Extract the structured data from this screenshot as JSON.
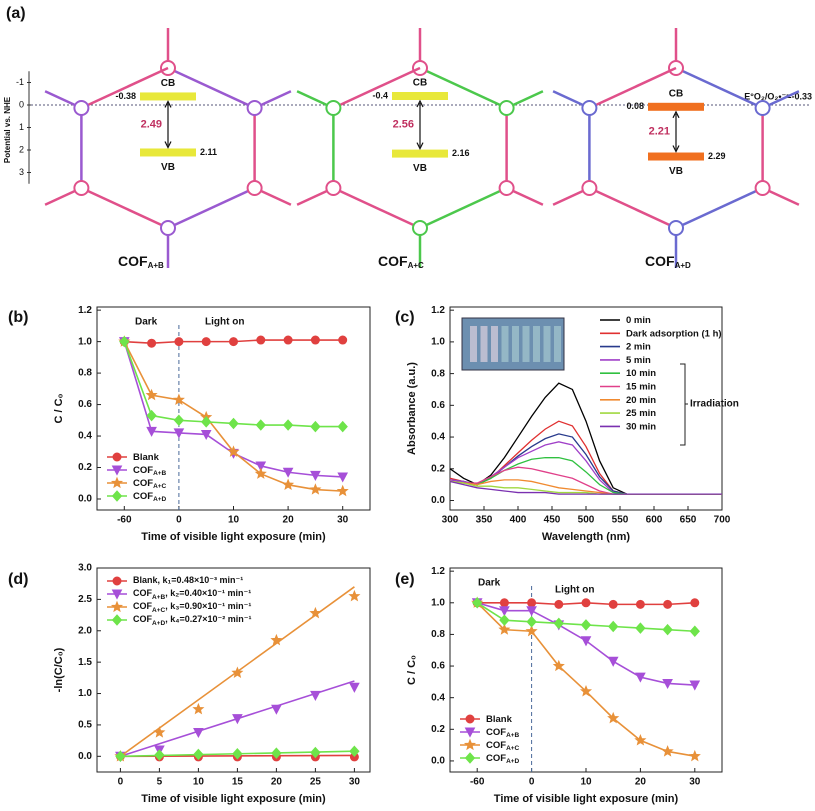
{
  "diagram": {
    "label": "(a)",
    "axis_label": "Potential vs. NHE",
    "axis_ticks": [
      -1,
      0,
      1,
      2,
      3
    ],
    "reference_label": "E°O₂/O₂•⁻=-0.33",
    "cofs": [
      {
        "name": "COF",
        "subscript": "A+B",
        "cb": -0.38,
        "vb": 2.11,
        "gap": 2.49,
        "cb_text": "CB",
        "vb_text": "VB",
        "color": "#e8e83a"
      },
      {
        "name": "COF",
        "subscript": "A+C",
        "cb": -0.4,
        "vb": 2.16,
        "gap": 2.56,
        "cb_text": "CB",
        "vb_text": "VB",
        "color": "#e8e83a"
      },
      {
        "name": "COF",
        "subscript": "A+D",
        "cb": 0.08,
        "vb": 2.29,
        "gap": 2.21,
        "cb_text": "CB",
        "vb_text": "VB",
        "color": "#f07020"
      }
    ]
  },
  "chart_data": [
    {
      "type": "line",
      "label": "(b)",
      "xlabel": "Time of visible light exposure (min)",
      "ylabel": "C / C₀",
      "annotations": [
        "Dark",
        "Light on"
      ],
      "categories": [
        "-60",
        null,
        "0",
        null,
        "10",
        null,
        "20",
        null,
        "30"
      ],
      "ylim": [
        -0.07,
        1.22
      ],
      "yticks": [
        {
          "value": 0,
          "label": "0.0"
        },
        0.2,
        0.4,
        0.6,
        0.8,
        {
          "value": 1,
          "label": "1.0"
        },
        1.2
      ],
      "legend": "lower left",
      "series": [
        {
          "name": "Blank",
          "color": "#e0403f",
          "marker": "circle",
          "values": [
            1.0,
            0.99,
            1.0,
            1.0,
            1.0,
            1.01,
            1.01,
            1.01,
            1.01
          ]
        },
        {
          "name": "COF",
          "subscript": "A+B",
          "color": "#a64fd8",
          "marker": "triangle",
          "values": [
            1.0,
            0.43,
            0.42,
            0.41,
            0.29,
            0.21,
            0.17,
            0.15,
            0.14
          ]
        },
        {
          "name": "COF",
          "subscript": "A+C",
          "color": "#e89139",
          "marker": "star",
          "values": [
            1.0,
            0.66,
            0.63,
            0.52,
            0.3,
            0.16,
            0.09,
            0.06,
            0.05
          ]
        },
        {
          "name": "COF",
          "subscript": "A+D",
          "color": "#6ee44a",
          "marker": "diamond",
          "values": [
            1.0,
            0.53,
            0.5,
            0.49,
            0.48,
            0.47,
            0.47,
            0.46,
            0.46
          ]
        }
      ]
    },
    {
      "type": "line",
      "label": "(c)",
      "xlabel": "Wavelength (nm)",
      "ylabel": "Absorbance (a.u.)",
      "annotations": [
        "Irradiation"
      ],
      "x": [
        300,
        320,
        340,
        360,
        380,
        400,
        420,
        440,
        460,
        480,
        500,
        520,
        540,
        560,
        600,
        650,
        700
      ],
      "xlim": [
        300,
        700
      ],
      "xticks": [
        300,
        350,
        400,
        450,
        500,
        550,
        600,
        650,
        700
      ],
      "ylim": [
        -0.06,
        1.22
      ],
      "yticks": [
        {
          "value": 0,
          "label": "0.0"
        },
        0.2,
        0.4,
        0.6,
        0.8,
        {
          "value": 1,
          "label": "1.0"
        },
        1.2
      ],
      "legend": "upper right",
      "series": [
        {
          "name": "0 min",
          "color": "#000000",
          "values": [
            0.2,
            0.14,
            0.1,
            0.16,
            0.27,
            0.4,
            0.53,
            0.65,
            0.74,
            0.7,
            0.5,
            0.25,
            0.08,
            0.04,
            0.04,
            0.04,
            0.04
          ]
        },
        {
          "name": "Dark adsorption (1 h)",
          "color": "#e03030",
          "values": [
            0.14,
            0.12,
            0.1,
            0.14,
            0.22,
            0.3,
            0.38,
            0.45,
            0.5,
            0.47,
            0.34,
            0.17,
            0.06,
            0.04,
            0.04,
            0.04,
            0.04
          ]
        },
        {
          "name": "2 min",
          "color": "#283a8c",
          "values": [
            0.13,
            0.12,
            0.1,
            0.14,
            0.21,
            0.28,
            0.34,
            0.39,
            0.42,
            0.4,
            0.29,
            0.15,
            0.06,
            0.04,
            0.04,
            0.04,
            0.04
          ]
        },
        {
          "name": "5 min",
          "color": "#a040c8",
          "values": [
            0.13,
            0.12,
            0.1,
            0.15,
            0.21,
            0.27,
            0.31,
            0.35,
            0.37,
            0.35,
            0.25,
            0.13,
            0.05,
            0.04,
            0.04,
            0.04,
            0.04
          ]
        },
        {
          "name": "10 min",
          "color": "#30c040",
          "values": [
            0.12,
            0.11,
            0.1,
            0.14,
            0.19,
            0.23,
            0.26,
            0.27,
            0.27,
            0.25,
            0.18,
            0.1,
            0.05,
            0.04,
            0.04,
            0.04,
            0.04
          ]
        },
        {
          "name": "15 min",
          "color": "#e0408a",
          "values": [
            0.12,
            0.11,
            0.11,
            0.15,
            0.19,
            0.21,
            0.2,
            0.18,
            0.16,
            0.14,
            0.1,
            0.06,
            0.04,
            0.04,
            0.04,
            0.04,
            0.04
          ]
        },
        {
          "name": "20 min",
          "color": "#f08a30",
          "values": [
            0.12,
            0.11,
            0.1,
            0.12,
            0.13,
            0.13,
            0.12,
            0.1,
            0.08,
            0.07,
            0.06,
            0.05,
            0.04,
            0.04,
            0.04,
            0.04,
            0.04
          ]
        },
        {
          "name": "25 min",
          "color": "#a0d840",
          "values": [
            0.12,
            0.11,
            0.09,
            0.09,
            0.08,
            0.08,
            0.07,
            0.06,
            0.05,
            0.05,
            0.05,
            0.04,
            0.04,
            0.04,
            0.04,
            0.04,
            0.04
          ]
        },
        {
          "name": "30 min",
          "color": "#7a30b0",
          "values": [
            0.12,
            0.1,
            0.08,
            0.07,
            0.06,
            0.05,
            0.05,
            0.05,
            0.04,
            0.04,
            0.04,
            0.04,
            0.04,
            0.04,
            0.04,
            0.04,
            0.04
          ]
        }
      ]
    },
    {
      "type": "scatter",
      "label": "(d)",
      "xlabel": "Time of visible light exposure (min)",
      "ylabel": "-ln(C/C₀)",
      "x": [
        0,
        5,
        10,
        15,
        20,
        25,
        30
      ],
      "xlim": [
        -3,
        32
      ],
      "xticks": [
        0,
        5,
        10,
        15,
        20,
        25,
        30
      ],
      "ylim": [
        -0.25,
        3.0
      ],
      "yticks": [
        {
          "value": 0,
          "label": "0.0"
        },
        0.5,
        {
          "value": 1,
          "label": "1.0"
        },
        1.5,
        {
          "value": 2,
          "label": "2.0"
        },
        2.5,
        {
          "value": 3,
          "label": "3.0"
        }
      ],
      "legend": "upper left",
      "series": [
        {
          "name": "Blank",
          "rate": ", k₁=0.48×10⁻³ min⁻¹",
          "fit_slope": 0.00048,
          "color": "#e0403f",
          "marker": "circle",
          "values": [
            0,
            -0.01,
            -0.01,
            -0.01,
            -0.01,
            -0.01,
            -0.01
          ]
        },
        {
          "name": "COF",
          "subscript": "A+B",
          "rate": ", k₂=0.40×10⁻¹ min⁻¹",
          "fit_slope": 0.04,
          "color": "#a64fd8",
          "marker": "triangle",
          "values": [
            0,
            0.1,
            0.38,
            0.6,
            0.75,
            0.97,
            1.1
          ]
        },
        {
          "name": "COF",
          "subscript": "A+C",
          "rate": ", k₃=0.90×10⁻¹ min⁻¹",
          "fit_slope": 0.09,
          "color": "#e89139",
          "marker": "star",
          "values": [
            0,
            0.38,
            0.75,
            1.33,
            1.85,
            2.28,
            2.55
          ]
        },
        {
          "name": "COF",
          "subscript": "A+D",
          "rate": ", k₄=0.27×10⁻² min⁻¹",
          "fit_slope": 0.0027,
          "color": "#6ee44a",
          "marker": "diamond",
          "values": [
            0,
            0.02,
            0.03,
            0.04,
            0.05,
            0.06,
            0.08
          ]
        }
      ]
    },
    {
      "type": "line",
      "label": "(e)",
      "xlabel": "Time of visible light exposure (min)",
      "ylabel": "C / C₀",
      "annotations": [
        "Dark",
        "Light on"
      ],
      "categories": [
        "-60",
        null,
        "0",
        null,
        "10",
        null,
        "20",
        null,
        "30"
      ],
      "ylim": [
        -0.07,
        1.22
      ],
      "yticks": [
        {
          "value": 0,
          "label": "0.0"
        },
        0.2,
        0.4,
        0.6,
        0.8,
        {
          "value": 1,
          "label": "1.0"
        },
        1.2
      ],
      "legend": "lower left",
      "series": [
        {
          "name": "Blank",
          "color": "#e0403f",
          "marker": "circle",
          "values": [
            1.0,
            1.0,
            1.0,
            0.99,
            1.0,
            0.99,
            0.99,
            0.99,
            1.0
          ]
        },
        {
          "name": "COF",
          "subscript": "A+B",
          "color": "#a64fd8",
          "marker": "triangle",
          "values": [
            1.0,
            0.95,
            0.95,
            0.86,
            0.76,
            0.63,
            0.53,
            0.49,
            0.48
          ]
        },
        {
          "name": "COF",
          "subscript": "A+C",
          "color": "#e89139",
          "marker": "star",
          "values": [
            1.0,
            0.83,
            0.82,
            0.6,
            0.44,
            0.27,
            0.13,
            0.06,
            0.03
          ]
        },
        {
          "name": "COF",
          "subscript": "A+D",
          "color": "#6ee44a",
          "marker": "diamond",
          "values": [
            1.0,
            0.89,
            0.88,
            0.87,
            0.86,
            0.85,
            0.84,
            0.83,
            0.82
          ]
        }
      ]
    }
  ]
}
